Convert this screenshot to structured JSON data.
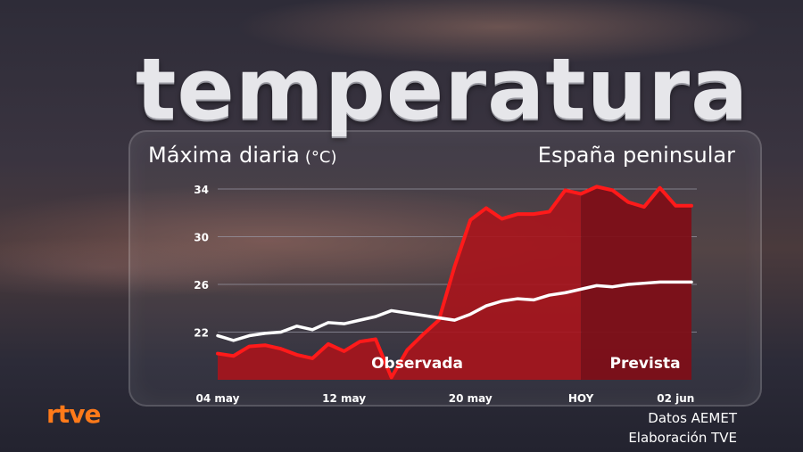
{
  "header": {
    "title": "temperatura",
    "subtitle": "Máxima diaria",
    "unit": "(°C)",
    "region": "España peninsular"
  },
  "footer": {
    "brand": "rtve",
    "source": "Datos AEMET",
    "credit": "Elaboración TVE"
  },
  "chart_data": {
    "type": "area",
    "x": [
      "04 may",
      "05 may",
      "06 may",
      "07 may",
      "08 may",
      "09 may",
      "10 may",
      "11 may",
      "12 may",
      "13 may",
      "14 may",
      "15 may",
      "16 may",
      "17 may",
      "18 may",
      "19 may",
      "20 may",
      "21 may",
      "22 may",
      "23 may",
      "24 may",
      "25 may",
      "26 may",
      "27 may",
      "28 may",
      "29 may",
      "30 may",
      "31 may",
      "01 jun",
      "02 jun",
      "03 jun"
    ],
    "x_tick_labels": [
      {
        "at": "04 may",
        "label": "04 may"
      },
      {
        "at": "12 may",
        "label": "12 may"
      },
      {
        "at": "20 may",
        "label": "20 may"
      },
      {
        "at": "27 may",
        "label": "HOY"
      },
      {
        "at": "02 jun",
        "label": "02 jun"
      }
    ],
    "today": "27 may",
    "series": [
      {
        "name": "",
        "color": "#ff1a1a",
        "values": [
          20.2,
          20.0,
          20.8,
          20.9,
          20.6,
          20.1,
          19.8,
          21.0,
          20.4,
          21.2,
          21.4,
          18.2,
          20.5,
          21.8,
          23.0,
          27.5,
          31.4,
          32.4,
          31.5,
          31.9,
          31.9,
          32.1,
          33.9,
          33.6,
          34.2,
          33.9,
          32.9,
          32.5,
          34.1,
          32.6,
          32.6
        ]
      },
      {
        "name": "",
        "color": "#ffffff",
        "values": [
          21.7,
          21.3,
          21.7,
          21.9,
          22.0,
          22.5,
          22.2,
          22.8,
          22.7,
          23.0,
          23.3,
          23.8,
          23.6,
          23.4,
          23.2,
          23.0,
          23.5,
          24.2,
          24.6,
          24.8,
          24.7,
          25.1,
          25.3,
          25.6,
          25.9,
          25.8,
          26.0,
          26.1,
          26.2,
          26.2,
          26.2
        ]
      }
    ],
    "regions": [
      {
        "label": "Observada",
        "from": "04 may",
        "to": "27 may"
      },
      {
        "label": "Prevista",
        "from": "27 may",
        "to": "03 jun"
      }
    ],
    "yticks": [
      22,
      26,
      30,
      34
    ],
    "ylim": [
      18,
      35.2
    ],
    "grid": true,
    "colors": {
      "area_observed": "#a8141c",
      "area_forecast": "#7e0f18",
      "grid": "#9a9aa8"
    }
  }
}
